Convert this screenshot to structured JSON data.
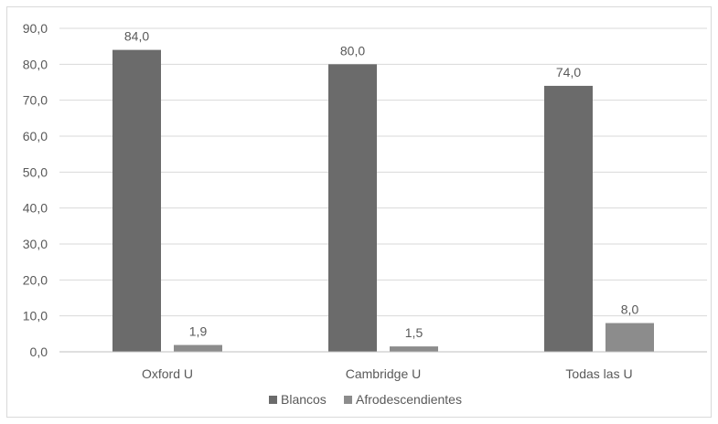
{
  "chart_data": {
    "type": "bar",
    "categories": [
      "Oxford U",
      "Cambridge U",
      "Todas las U"
    ],
    "series": [
      {
        "name": "Blancos",
        "values": [
          84.0,
          80.0,
          74.0
        ],
        "color": "#6b6b6b"
      },
      {
        "name": "Afrodescendientes",
        "values": [
          1.9,
          1.5,
          8.0
        ],
        "color": "#8c8c8c"
      }
    ],
    "data_labels": [
      [
        "84,0",
        "80,0",
        "74,0"
      ],
      [
        "1,9",
        "1,5",
        "8,0"
      ]
    ],
    "y_ticks": [
      "0,0",
      "10,0",
      "20,0",
      "30,0",
      "40,0",
      "50,0",
      "60,0",
      "70,0",
      "80,0",
      "90,0"
    ],
    "ylim": [
      0,
      90
    ],
    "y_step": 10,
    "grid": true,
    "legend_position": "bottom",
    "title": "",
    "xlabel": "",
    "ylabel": ""
  }
}
